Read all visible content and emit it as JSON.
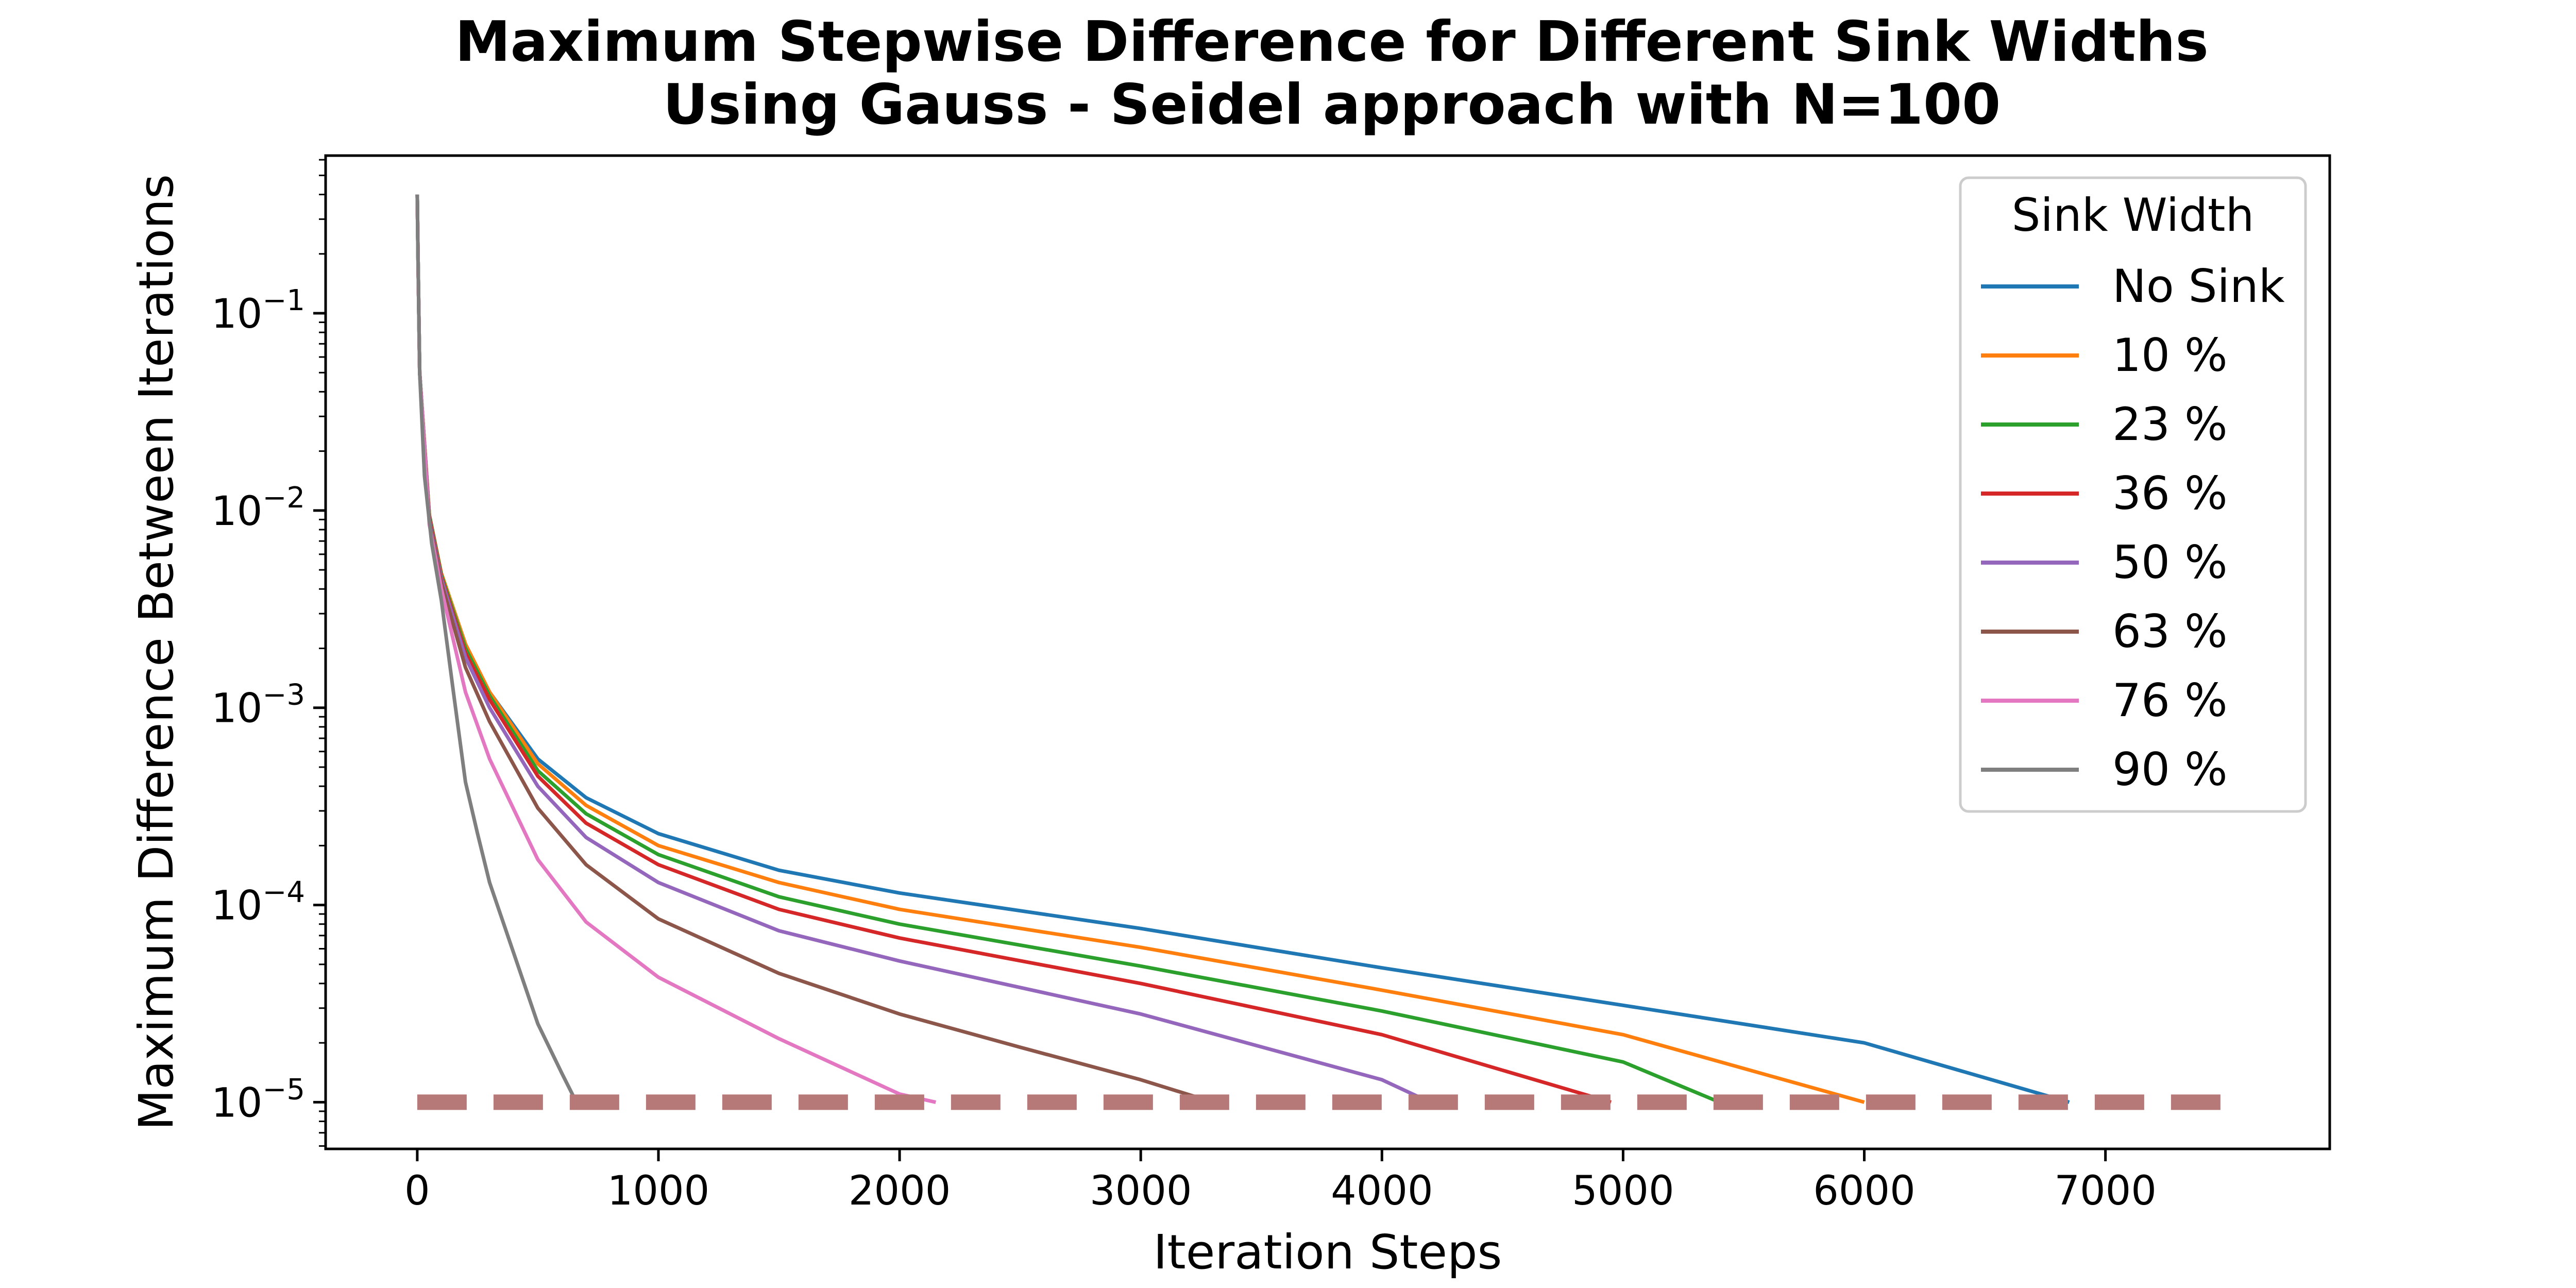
{
  "chart_data": {
    "type": "line",
    "title_line1": "Maximum Stepwise Difference for Different Sink Widths",
    "title_line2": "Using Gauss - Seidel approach with N=100",
    "xlabel": "Iteration Steps",
    "ylabel": "Maximum Difference Between Iterations",
    "x_ticks": [
      "0",
      "1000",
      "2000",
      "3000",
      "4000",
      "5000",
      "6000",
      "7000"
    ],
    "y_ticks": [
      {
        "base": "10",
        "exp": "−1",
        "value": 0.1
      },
      {
        "base": "10",
        "exp": "−2",
        "value": 0.01
      },
      {
        "base": "10",
        "exp": "−3",
        "value": 0.001
      },
      {
        "base": "10",
        "exp": "−4",
        "value": 0.0001
      },
      {
        "base": "10",
        "exp": "−5",
        "value": 1e-05
      }
    ],
    "xlim": [
      -380,
      7930
    ],
    "ylim": [
      5.8e-06,
      0.63
    ],
    "yscale": "log",
    "grid": false,
    "legend": {
      "title": "Sink Width",
      "placement": "upper right",
      "entries": [
        "No Sink",
        "10 %",
        "23 %",
        "36 %",
        "50 %",
        "63 %",
        "76 %",
        "90 %"
      ]
    },
    "threshold": {
      "y": 1e-05,
      "x_start": 0,
      "x_end": 7500,
      "color": "#b77878",
      "style": "dashed"
    },
    "series": [
      {
        "name": "No Sink",
        "color": "#1f77b4",
        "points": [
          [
            0,
            0.4
          ],
          [
            3,
            0.2
          ],
          [
            10,
            0.05
          ],
          [
            50,
            0.0095
          ],
          [
            100,
            0.0048
          ],
          [
            200,
            0.0021
          ],
          [
            300,
            0.0012
          ],
          [
            500,
            0.00055
          ],
          [
            700,
            0.00035
          ],
          [
            1000,
            0.00023
          ],
          [
            1500,
            0.00015
          ],
          [
            2000,
            0.000115
          ],
          [
            3000,
            7.6e-05
          ],
          [
            4000,
            4.8e-05
          ],
          [
            5000,
            3.1e-05
          ],
          [
            6000,
            2e-05
          ],
          [
            6850,
            1e-05
          ]
        ]
      },
      {
        "name": "10 %",
        "color": "#ff7f0e",
        "points": [
          [
            0,
            0.4
          ],
          [
            3,
            0.2
          ],
          [
            10,
            0.05
          ],
          [
            50,
            0.0095
          ],
          [
            100,
            0.0048
          ],
          [
            200,
            0.0021
          ],
          [
            300,
            0.0012
          ],
          [
            500,
            0.00052
          ],
          [
            700,
            0.00032
          ],
          [
            1000,
            0.0002
          ],
          [
            1500,
            0.00013
          ],
          [
            2000,
            9.5e-05
          ],
          [
            3000,
            6.1e-05
          ],
          [
            4000,
            3.7e-05
          ],
          [
            5000,
            2.2e-05
          ],
          [
            6000,
            1e-05
          ]
        ]
      },
      {
        "name": "23 %",
        "color": "#2ca02c",
        "points": [
          [
            0,
            0.4
          ],
          [
            3,
            0.2
          ],
          [
            10,
            0.05
          ],
          [
            50,
            0.0095
          ],
          [
            100,
            0.0047
          ],
          [
            200,
            0.002
          ],
          [
            300,
            0.00115
          ],
          [
            500,
            0.00048
          ],
          [
            700,
            0.00029
          ],
          [
            1000,
            0.00018
          ],
          [
            1500,
            0.00011
          ],
          [
            2000,
            8e-05
          ],
          [
            3000,
            4.9e-05
          ],
          [
            4000,
            2.9e-05
          ],
          [
            5000,
            1.6e-05
          ],
          [
            5400,
            1e-05
          ]
        ]
      },
      {
        "name": "36 %",
        "color": "#d62728",
        "points": [
          [
            0,
            0.4
          ],
          [
            3,
            0.2
          ],
          [
            10,
            0.05
          ],
          [
            50,
            0.0093
          ],
          [
            100,
            0.0046
          ],
          [
            200,
            0.0019
          ],
          [
            300,
            0.0011
          ],
          [
            500,
            0.00045
          ],
          [
            700,
            0.00026
          ],
          [
            1000,
            0.00016
          ],
          [
            1500,
            9.5e-05
          ],
          [
            2000,
            6.8e-05
          ],
          [
            3000,
            4e-05
          ],
          [
            4000,
            2.2e-05
          ],
          [
            4950,
            1e-05
          ]
        ]
      },
      {
        "name": "50 %",
        "color": "#9467bd",
        "points": [
          [
            0,
            0.4
          ],
          [
            3,
            0.2
          ],
          [
            10,
            0.05
          ],
          [
            50,
            0.009
          ],
          [
            100,
            0.0045
          ],
          [
            200,
            0.0018
          ],
          [
            300,
            0.001
          ],
          [
            500,
            0.0004
          ],
          [
            700,
            0.00022
          ],
          [
            1000,
            0.00013
          ],
          [
            1500,
            7.4e-05
          ],
          [
            2000,
            5.2e-05
          ],
          [
            3000,
            2.8e-05
          ],
          [
            4000,
            1.3e-05
          ],
          [
            4200,
            1e-05
          ]
        ]
      },
      {
        "name": "63 %",
        "color": "#8c564b",
        "points": [
          [
            0,
            0.4
          ],
          [
            3,
            0.2
          ],
          [
            10,
            0.05
          ],
          [
            50,
            0.0088
          ],
          [
            100,
            0.0043
          ],
          [
            200,
            0.0016
          ],
          [
            300,
            0.00085
          ],
          [
            500,
            0.00031
          ],
          [
            700,
            0.00016
          ],
          [
            1000,
            8.5e-05
          ],
          [
            1500,
            4.5e-05
          ],
          [
            2000,
            2.8e-05
          ],
          [
            2500,
            1.9e-05
          ],
          [
            3000,
            1.3e-05
          ],
          [
            3300,
            1e-05
          ]
        ]
      },
      {
        "name": "76 %",
        "color": "#e377c2",
        "points": [
          [
            0,
            0.4
          ],
          [
            3,
            0.2
          ],
          [
            10,
            0.05
          ],
          [
            50,
            0.0085
          ],
          [
            100,
            0.004
          ],
          [
            200,
            0.0012
          ],
          [
            300,
            0.00055
          ],
          [
            500,
            0.00017
          ],
          [
            700,
            8.2e-05
          ],
          [
            1000,
            4.3e-05
          ],
          [
            1500,
            2.1e-05
          ],
          [
            2000,
            1.1e-05
          ],
          [
            2150,
            1e-05
          ]
        ]
      },
      {
        "name": "90 %",
        "color": "#7f7f7f",
        "points": [
          [
            0,
            0.4
          ],
          [
            3,
            0.2
          ],
          [
            10,
            0.05
          ],
          [
            30,
            0.015
          ],
          [
            60,
            0.0068
          ],
          [
            100,
            0.0035
          ],
          [
            150,
            0.0012
          ],
          [
            200,
            0.00042
          ],
          [
            250,
            0.00023
          ],
          [
            300,
            0.00013
          ],
          [
            400,
            5.7e-05
          ],
          [
            500,
            2.5e-05
          ],
          [
            600,
            1.4e-05
          ],
          [
            660,
            1e-05
          ]
        ]
      }
    ]
  }
}
